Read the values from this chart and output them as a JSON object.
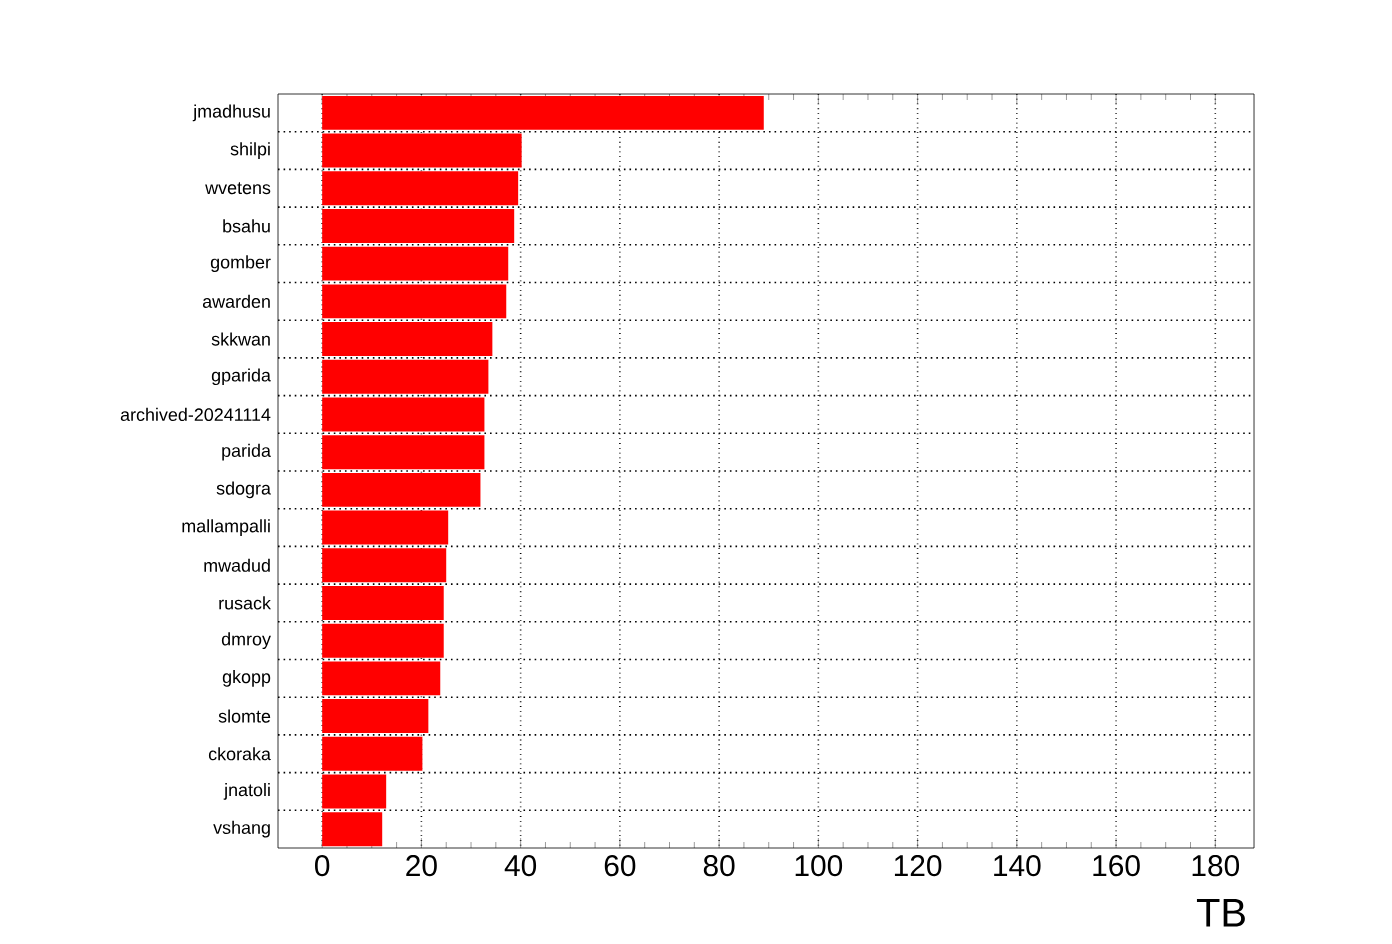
{
  "chart_data": {
    "type": "bar",
    "orientation": "horizontal",
    "xlabel": "TB",
    "categories": [
      "jmadhusu",
      "shilpi",
      "wvetens",
      "bsahu",
      "gomber",
      "awarden",
      "skkwan",
      "gparida",
      "archived-20241114",
      "parida",
      "sdogra",
      "mallampalli",
      "mwadud",
      "rusack",
      "dmroy",
      "gkopp",
      "slomte",
      "ckoraka",
      "jnatoli",
      "vshang"
    ],
    "values": [
      89.0,
      40.2,
      39.5,
      38.7,
      37.5,
      37.1,
      34.3,
      33.5,
      32.7,
      32.7,
      31.9,
      25.4,
      25.0,
      24.5,
      24.5,
      23.8,
      21.4,
      20.2,
      12.9,
      12.1
    ],
    "color": "#ff0000",
    "xlim": [
      -8.9,
      187.8
    ],
    "xticks": [
      0,
      20,
      40,
      60,
      80,
      100,
      120,
      140,
      160,
      180
    ],
    "grid": true
  }
}
